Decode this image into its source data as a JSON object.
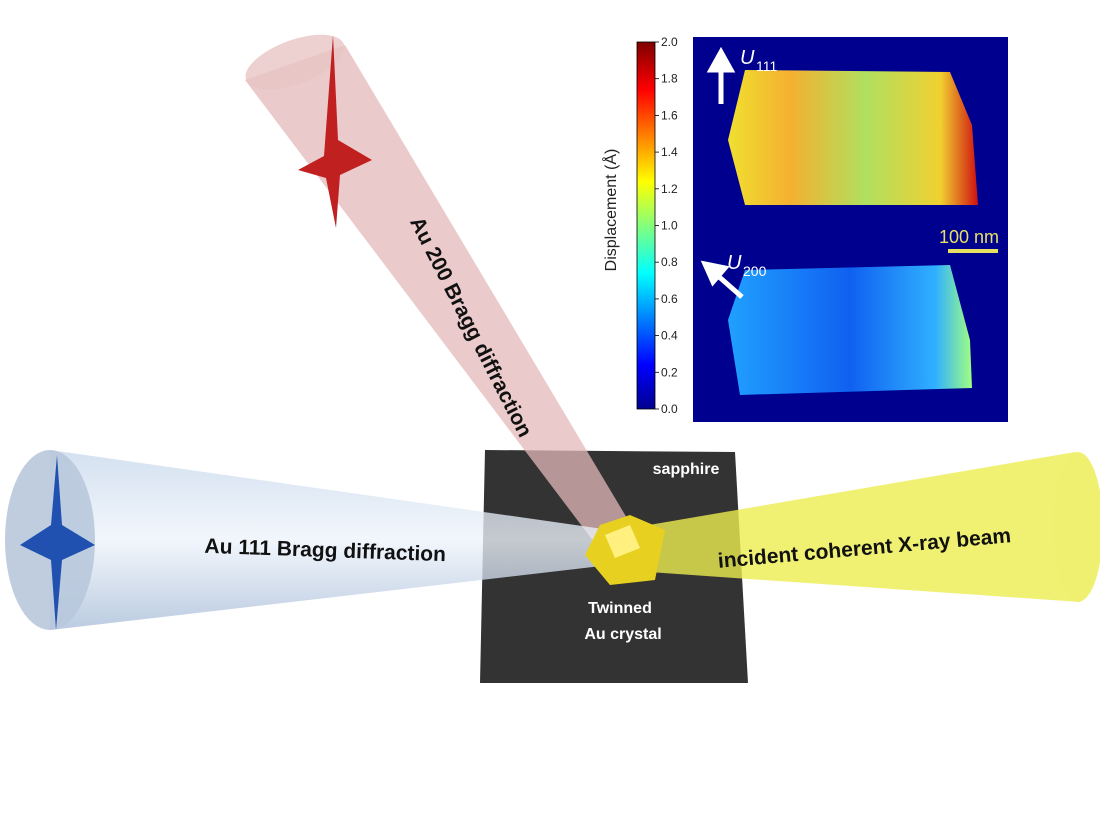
{
  "labels": {
    "beam_200": "Au 200 Bragg diffraction",
    "beam_111": "Au 111 Bragg diffraction",
    "incident": "incident coherent X-ray beam",
    "substrate": "sapphire",
    "crystal": [
      "Twinned",
      "Au crystal"
    ]
  },
  "inset": {
    "u111": {
      "symbol": "U",
      "subscript": "111"
    },
    "u200": {
      "symbol": "U",
      "subscript": "200"
    },
    "scale_bar": "100 nm"
  },
  "colorbar": {
    "label": "Displacement (Å)",
    "lim": [
      0,
      2
    ],
    "ticks": [
      {
        "value": 0,
        "label": "0.0"
      },
      {
        "value": 0.2,
        "label": "0.2"
      },
      {
        "value": 0.4,
        "label": "0.4"
      },
      {
        "value": 0.6,
        "label": "0.6"
      },
      {
        "value": 0.8,
        "label": "0.8"
      },
      {
        "value": 1,
        "label": "1.0"
      },
      {
        "value": 1.2,
        "label": "1.2"
      },
      {
        "value": 1.4,
        "label": "1.4"
      },
      {
        "value": 1.6,
        "label": "1.6"
      },
      {
        "value": 1.8,
        "label": "1.8"
      },
      {
        "value": 2,
        "label": "2.0"
      }
    ]
  }
}
